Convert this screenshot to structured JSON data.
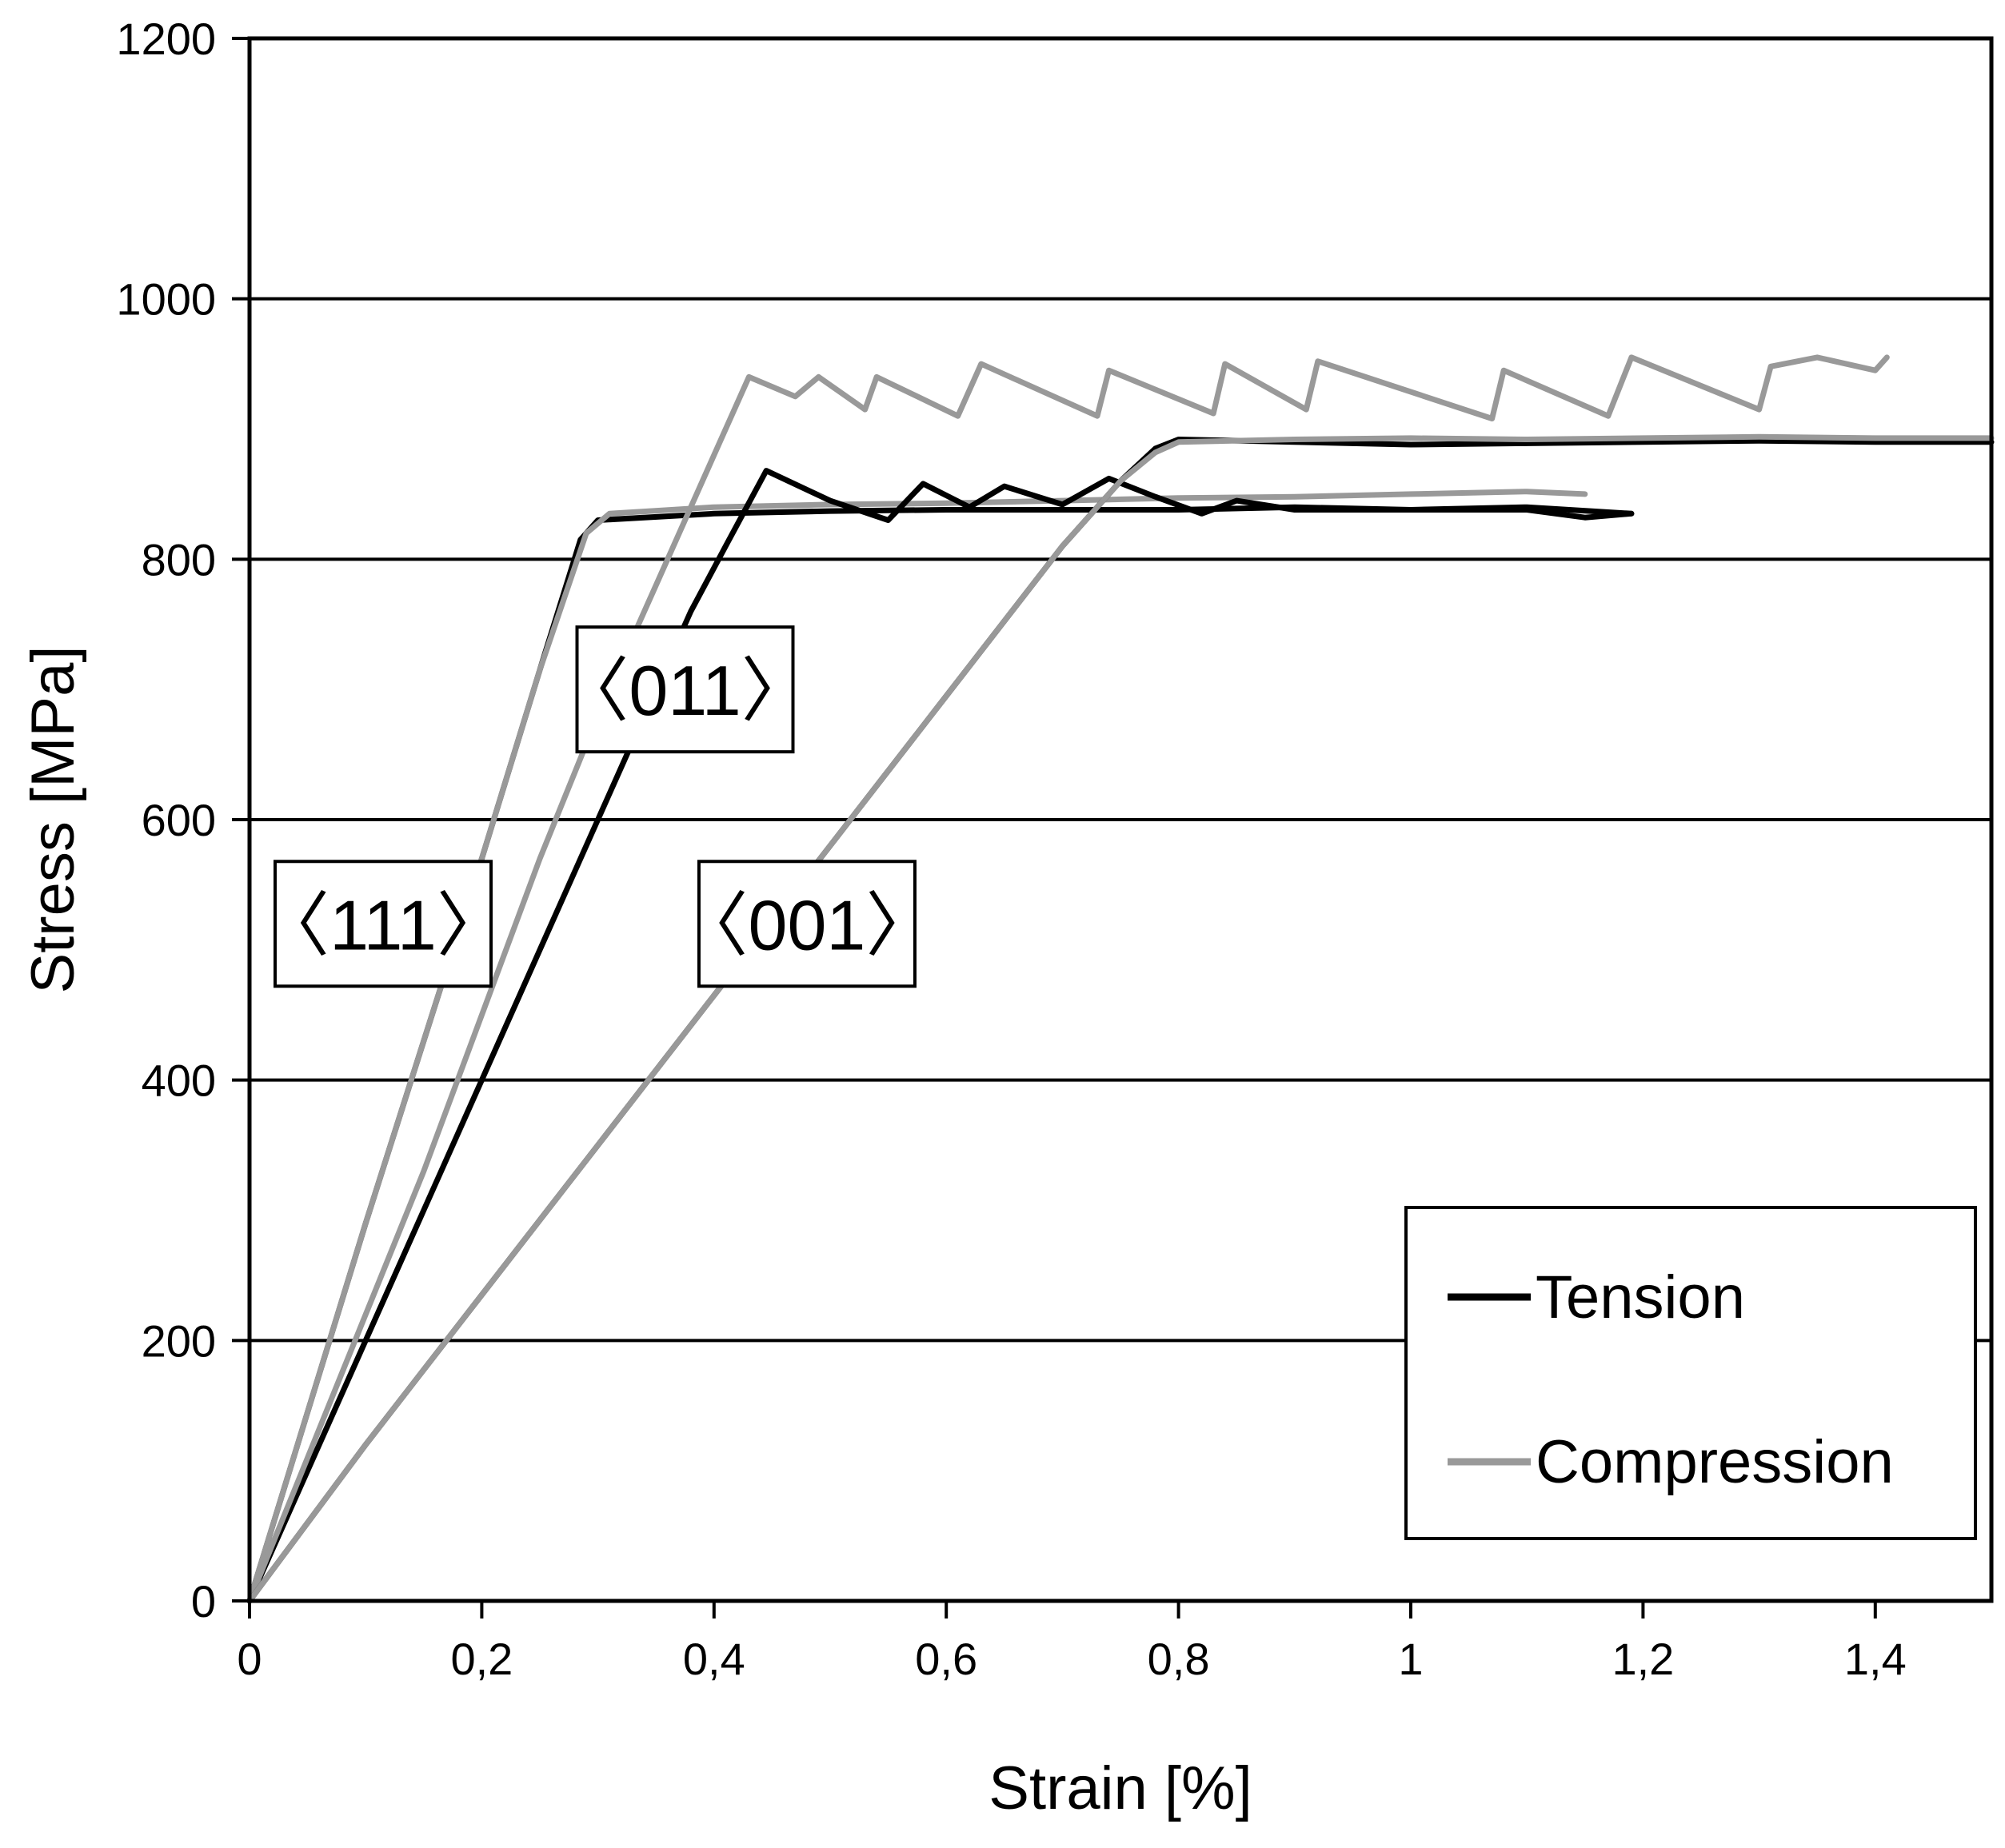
{
  "chart_data": {
    "type": "line",
    "title": "",
    "xlabel": "Strain [%]",
    "ylabel": "Stress [MPa]",
    "xlim": [
      0,
      1.5
    ],
    "ylim": [
      0,
      1200
    ],
    "grid": "horizontal",
    "x_ticks": [
      {
        "value": 0,
        "label": "0"
      },
      {
        "value": 0.2,
        "label": "0,2"
      },
      {
        "value": 0.4,
        "label": "0,4"
      },
      {
        "value": 0.6,
        "label": "0,6"
      },
      {
        "value": 0.8,
        "label": "0,8"
      },
      {
        "value": 1.0,
        "label": "1"
      },
      {
        "value": 1.2,
        "label": "1,2"
      },
      {
        "value": 1.4,
        "label": "1,4"
      }
    ],
    "y_ticks": [
      {
        "value": 0,
        "label": "0"
      },
      {
        "value": 200,
        "label": "200"
      },
      {
        "value": 400,
        "label": "400"
      },
      {
        "value": 600,
        "label": "600"
      },
      {
        "value": 800,
        "label": "800"
      },
      {
        "value": 1000,
        "label": "1000"
      },
      {
        "value": 1200,
        "label": "1200"
      }
    ],
    "legend": {
      "position": "bottom-right",
      "entries": [
        {
          "name": "Tension",
          "color": "#000000"
        },
        {
          "name": "Compression",
          "color": "#999999"
        }
      ]
    },
    "annotations": [
      {
        "text": "〈111〉",
        "x": 0.115,
        "y": 520
      },
      {
        "text": "〈011〉",
        "x": 0.375,
        "y": 700
      },
      {
        "text": "〈001〉",
        "x": 0.48,
        "y": 520
      }
    ],
    "series": [
      {
        "name": "Tension 〈111〉",
        "kind": "Tension",
        "color": "#000000",
        "x": [
          0,
          0.05,
          0.1,
          0.15,
          0.2,
          0.25,
          0.285,
          0.3,
          0.4,
          0.5,
          0.6,
          0.7,
          0.8,
          0.9,
          1.0,
          1.1,
          1.15,
          1.19
        ],
        "y": [
          0,
          145,
          290,
          430,
          570,
          715,
          815,
          830,
          835,
          837,
          838,
          838,
          838,
          840,
          838,
          838,
          832,
          835
        ]
      },
      {
        "name": "Compression 〈111〉",
        "kind": "Compression",
        "color": "#999999",
        "x": [
          0,
          0.05,
          0.1,
          0.15,
          0.2,
          0.25,
          0.29,
          0.31,
          0.4,
          0.5,
          0.6,
          0.7,
          0.8,
          0.9,
          1.0,
          1.1,
          1.15
        ],
        "y": [
          0,
          145,
          290,
          430,
          570,
          715,
          820,
          835,
          840,
          842,
          843,
          845,
          847,
          848,
          850,
          852,
          850
        ]
      },
      {
        "name": "Tension 〈011〉",
        "kind": "Tension",
        "color": "#000000",
        "x": [
          0,
          0.05,
          0.1,
          0.15,
          0.2,
          0.25,
          0.3,
          0.35,
          0.38,
          0.41,
          0.445,
          0.5,
          0.55,
          0.58,
          0.62,
          0.65,
          0.7,
          0.74,
          0.78,
          0.82,
          0.85,
          0.9,
          1.0,
          1.1,
          1.19
        ],
        "y": [
          0,
          100,
          200,
          300,
          400,
          500,
          600,
          700,
          760,
          810,
          868,
          845,
          830,
          858,
          840,
          856,
          842,
          862,
          848,
          835,
          845,
          838,
          838,
          840,
          835
        ]
      },
      {
        "name": "Compression 〈011〉",
        "kind": "Compression",
        "color": "#999999",
        "x": [
          0,
          0.05,
          0.1,
          0.15,
          0.2,
          0.25,
          0.3,
          0.35,
          0.4,
          0.43,
          0.47,
          0.49,
          0.53,
          0.54,
          0.61,
          0.63,
          0.73,
          0.74,
          0.83,
          0.84,
          0.91,
          0.92,
          1.07,
          1.08,
          1.17,
          1.19,
          1.3,
          1.31,
          1.35,
          1.4,
          1.41
        ],
        "y": [
          0,
          110,
          220,
          330,
          450,
          570,
          680,
          780,
          880,
          940,
          925,
          940,
          915,
          940,
          910,
          950,
          910,
          945,
          912,
          950,
          915,
          952,
          908,
          945,
          910,
          955,
          915,
          948,
          955,
          945,
          955
        ]
      },
      {
        "name": "Tension 〈001〉",
        "kind": "Tension",
        "color": "#000000",
        "x": [
          0,
          0.1,
          0.2,
          0.3,
          0.4,
          0.5,
          0.6,
          0.7,
          0.75,
          0.78,
          0.8,
          0.9,
          1.0,
          1.1,
          1.2,
          1.3,
          1.4,
          1.5
        ],
        "y": [
          0,
          120,
          235,
          350,
          465,
          580,
          695,
          810,
          860,
          885,
          892,
          890,
          888,
          889,
          890,
          891,
          890,
          890
        ]
      },
      {
        "name": "Compression 〈001〉",
        "kind": "Compression",
        "color": "#999999",
        "x": [
          0,
          0.1,
          0.2,
          0.3,
          0.4,
          0.5,
          0.6,
          0.7,
          0.75,
          0.78,
          0.8,
          0.9,
          1.0,
          1.1,
          1.2,
          1.3,
          1.4,
          1.5
        ],
        "y": [
          0,
          120,
          235,
          350,
          465,
          580,
          695,
          810,
          860,
          882,
          890,
          892,
          893,
          892,
          893,
          894,
          893,
          893
        ]
      }
    ]
  }
}
